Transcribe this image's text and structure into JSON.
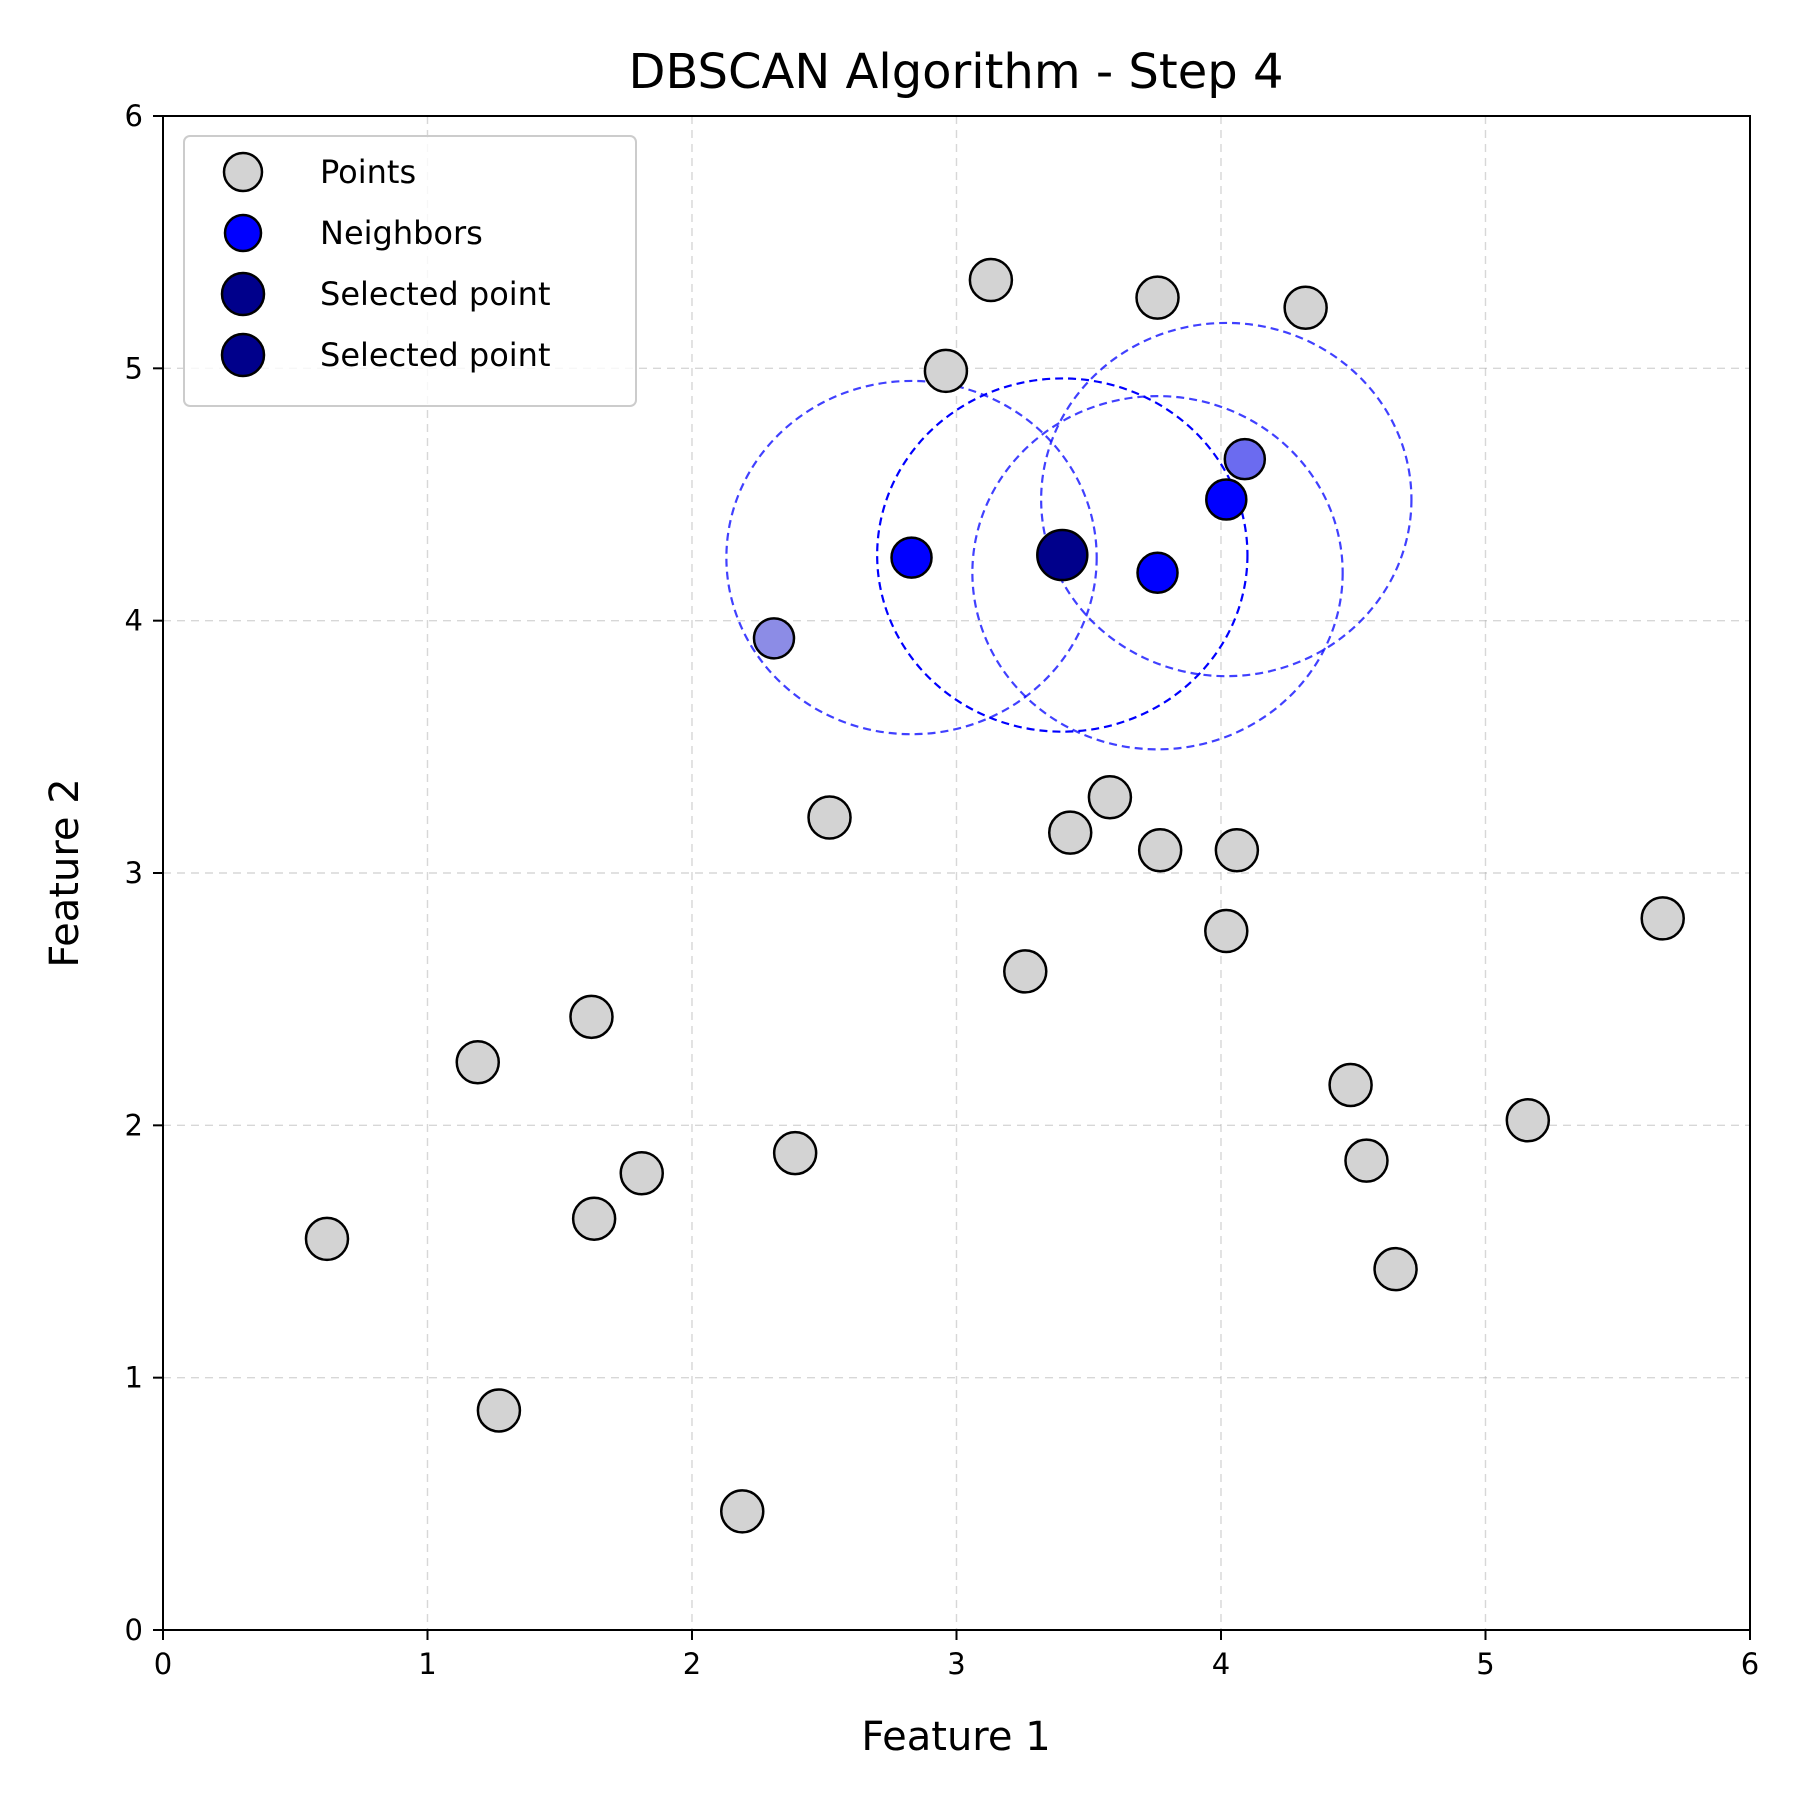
{
  "chart_data": {
    "type": "scatter",
    "title": "DBSCAN Algorithm - Step 4",
    "xlabel": "Feature 1",
    "ylabel": "Feature 2",
    "xlim": [
      0,
      6
    ],
    "ylim": [
      0,
      6
    ],
    "xticks": [
      "0",
      "1",
      "2",
      "3",
      "4",
      "5",
      "6"
    ],
    "yticks": [
      "0",
      "1",
      "2",
      "3",
      "4",
      "5",
      "6"
    ],
    "grid": true,
    "legend_position": "top-left",
    "legend": [
      {
        "label": "Points",
        "style": "points"
      },
      {
        "label": "Neighbors",
        "style": "neighbors"
      },
      {
        "label": "Selected point",
        "style": "selected"
      },
      {
        "label": "Selected point",
        "style": "selected"
      }
    ],
    "colors": {
      "points": "#d3d3d3",
      "neighbors": "#0000ff",
      "selected": "#00008b",
      "visited_light": "#8c8ce6",
      "visited_medium": "#6b6bf0",
      "circle": "#0000ff"
    },
    "points": [
      {
        "x": 0.62,
        "y": 1.55
      },
      {
        "x": 1.19,
        "y": 2.25
      },
      {
        "x": 1.27,
        "y": 0.87
      },
      {
        "x": 1.62,
        "y": 2.43
      },
      {
        "x": 1.63,
        "y": 1.63
      },
      {
        "x": 1.81,
        "y": 1.81
      },
      {
        "x": 2.19,
        "y": 0.47
      },
      {
        "x": 2.39,
        "y": 1.89
      },
      {
        "x": 2.52,
        "y": 3.22
      },
      {
        "x": 2.96,
        "y": 4.99
      },
      {
        "x": 3.13,
        "y": 5.35
      },
      {
        "x": 3.26,
        "y": 2.61
      },
      {
        "x": 3.43,
        "y": 3.16
      },
      {
        "x": 3.58,
        "y": 3.3
      },
      {
        "x": 3.76,
        "y": 5.28
      },
      {
        "x": 3.77,
        "y": 3.09
      },
      {
        "x": 4.02,
        "y": 2.77
      },
      {
        "x": 4.06,
        "y": 3.09
      },
      {
        "x": 4.32,
        "y": 5.24
      },
      {
        "x": 4.49,
        "y": 2.16
      },
      {
        "x": 4.55,
        "y": 1.86
      },
      {
        "x": 4.66,
        "y": 1.43
      },
      {
        "x": 5.16,
        "y": 2.02
      },
      {
        "x": 5.67,
        "y": 2.82
      }
    ],
    "visited_points": [
      {
        "x": 2.31,
        "y": 3.93,
        "shade": "visited_light"
      },
      {
        "x": 4.09,
        "y": 4.64,
        "shade": "visited_medium"
      }
    ],
    "neighbors": [
      {
        "x": 2.83,
        "y": 4.25
      },
      {
        "x": 3.76,
        "y": 4.19
      },
      {
        "x": 4.02,
        "y": 4.48
      }
    ],
    "selected_point": {
      "x": 3.4,
      "y": 4.26
    },
    "eps_radius": 0.7,
    "eps_circles": [
      {
        "x": 2.83,
        "y": 4.25,
        "opacity": 0.75
      },
      {
        "x": 3.4,
        "y": 4.26,
        "opacity": 1.0
      },
      {
        "x": 3.76,
        "y": 4.19,
        "opacity": 0.75
      },
      {
        "x": 4.02,
        "y": 4.48,
        "opacity": 0.75
      }
    ]
  }
}
